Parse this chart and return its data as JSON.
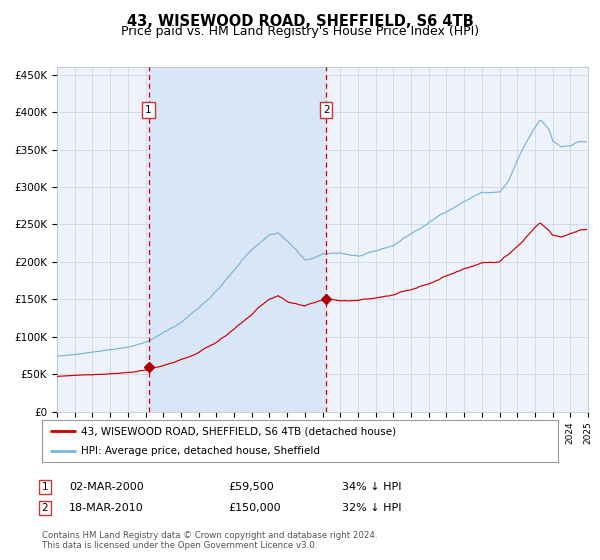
{
  "title": "43, WISEWOOD ROAD, SHEFFIELD, S6 4TB",
  "subtitle": "Price paid vs. HM Land Registry's House Price Index (HPI)",
  "title_fontsize": 10.5,
  "subtitle_fontsize": 9,
  "background_color": "#ffffff",
  "plot_bg_color": "#eef2fb",
  "hpi_color": "#7ab4d8",
  "price_color": "#cc0000",
  "marker_color": "#aa0000",
  "vline_color": "#cc0000",
  "shading_color": "#d8e6f5",
  "grid_color": "#c8d0e0",
  "ylim": [
    0,
    460000
  ],
  "yticks": [
    0,
    50000,
    100000,
    150000,
    200000,
    250000,
    300000,
    350000,
    400000,
    450000
  ],
  "ytick_labels": [
    "£0",
    "£50K",
    "£100K",
    "£150K",
    "£200K",
    "£250K",
    "£300K",
    "£350K",
    "£400K",
    "£450K"
  ],
  "year_start": 1995,
  "year_end": 2025,
  "sale1_year": 2000.17,
  "sale1_price": 59500,
  "sale1_label": "1",
  "sale1_date": "02-MAR-2000",
  "sale1_price_str": "£59,500",
  "sale1_pct": "34% ↓ HPI",
  "sale2_year": 2010.21,
  "sale2_price": 150000,
  "sale2_label": "2",
  "sale2_date": "18-MAR-2010",
  "sale2_price_str": "£150,000",
  "sale2_pct": "32% ↓ HPI",
  "legend_entry1": "43, WISEWOOD ROAD, SHEFFIELD, S6 4TB (detached house)",
  "legend_entry2": "HPI: Average price, detached house, Sheffield",
  "footer": "Contains HM Land Registry data © Crown copyright and database right 2024.\nThis data is licensed under the Open Government Licence v3.0."
}
